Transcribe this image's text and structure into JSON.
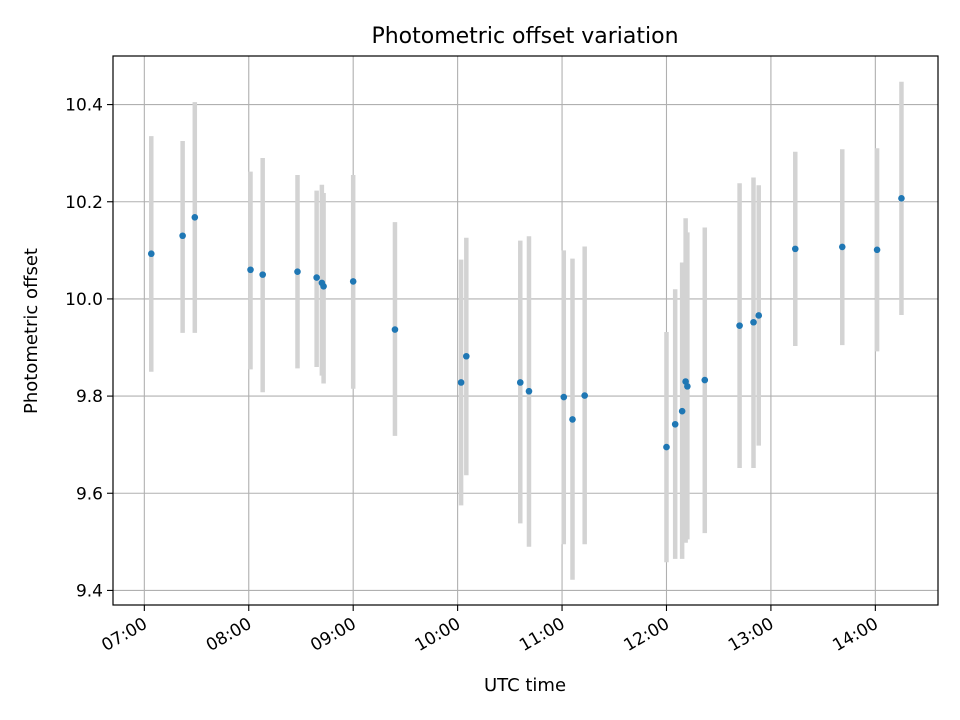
{
  "chart_data": {
    "type": "scatter",
    "title": "Photometric offset variation",
    "xlabel": "UTC time",
    "ylabel": "Photometric offset",
    "x_ticks": [
      "07:00",
      "08:00",
      "09:00",
      "10:00",
      "11:00",
      "12:00",
      "13:00",
      "14:00"
    ],
    "y_ticks": [
      "9.4",
      "9.6",
      "9.8",
      "10.0",
      "10.2",
      "10.4"
    ],
    "xlim": [
      "06:42",
      "14:36"
    ],
    "ylim": [
      9.37,
      10.5
    ],
    "grid": true,
    "colors": {
      "point": "#1f77b4",
      "errorbar": "#d3d3d3",
      "grid": "#b0b0b0",
      "axes": "#000000"
    },
    "points": [
      {
        "t": "07:04",
        "y": 10.093,
        "lo": 9.85,
        "hi": 10.335
      },
      {
        "t": "07:22",
        "y": 10.13,
        "lo": 9.93,
        "hi": 10.325
      },
      {
        "t": "07:29",
        "y": 10.168,
        "lo": 9.93,
        "hi": 10.405
      },
      {
        "t": "08:01",
        "y": 10.06,
        "lo": 9.855,
        "hi": 10.262
      },
      {
        "t": "08:08",
        "y": 10.05,
        "lo": 9.808,
        "hi": 10.29
      },
      {
        "t": "08:28",
        "y": 10.056,
        "lo": 9.857,
        "hi": 10.255
      },
      {
        "t": "08:39",
        "y": 10.044,
        "lo": 9.86,
        "hi": 10.223
      },
      {
        "t": "08:42",
        "y": 10.033,
        "lo": 9.842,
        "hi": 10.235
      },
      {
        "t": "08:43",
        "y": 10.026,
        "lo": 9.826,
        "hi": 10.218
      },
      {
        "t": "09:00",
        "y": 10.036,
        "lo": 9.815,
        "hi": 10.255
      },
      {
        "t": "09:24",
        "y": 9.937,
        "lo": 9.718,
        "hi": 10.158
      },
      {
        "t": "10:02",
        "y": 9.828,
        "lo": 9.575,
        "hi": 10.081
      },
      {
        "t": "10:05",
        "y": 9.882,
        "lo": 9.637,
        "hi": 10.126
      },
      {
        "t": "10:36",
        "y": 9.828,
        "lo": 9.538,
        "hi": 10.12
      },
      {
        "t": "10:41",
        "y": 9.81,
        "lo": 9.49,
        "hi": 10.129
      },
      {
        "t": "11:01",
        "y": 9.798,
        "lo": 9.495,
        "hi": 10.1
      },
      {
        "t": "11:06",
        "y": 9.752,
        "lo": 9.422,
        "hi": 10.083
      },
      {
        "t": "11:13",
        "y": 9.801,
        "lo": 9.495,
        "hi": 10.108
      },
      {
        "t": "12:00",
        "y": 9.695,
        "lo": 9.458,
        "hi": 9.932
      },
      {
        "t": "12:05",
        "y": 9.742,
        "lo": 9.465,
        "hi": 10.02
      },
      {
        "t": "12:09",
        "y": 9.769,
        "lo": 9.465,
        "hi": 10.075
      },
      {
        "t": "12:11",
        "y": 9.83,
        "lo": 9.498,
        "hi": 10.166
      },
      {
        "t": "12:12",
        "y": 9.82,
        "lo": 9.505,
        "hi": 10.137
      },
      {
        "t": "12:22",
        "y": 9.833,
        "lo": 9.518,
        "hi": 10.147
      },
      {
        "t": "12:42",
        "y": 9.945,
        "lo": 9.652,
        "hi": 10.238
      },
      {
        "t": "12:50",
        "y": 9.952,
        "lo": 9.652,
        "hi": 10.25
      },
      {
        "t": "12:53",
        "y": 9.966,
        "lo": 9.698,
        "hi": 10.234
      },
      {
        "t": "13:14",
        "y": 10.103,
        "lo": 9.903,
        "hi": 10.303
      },
      {
        "t": "13:41",
        "y": 10.107,
        "lo": 9.905,
        "hi": 10.308
      },
      {
        "t": "14:01",
        "y": 10.101,
        "lo": 9.892,
        "hi": 10.31
      },
      {
        "t": "14:15",
        "y": 10.207,
        "lo": 9.967,
        "hi": 10.447
      }
    ]
  }
}
